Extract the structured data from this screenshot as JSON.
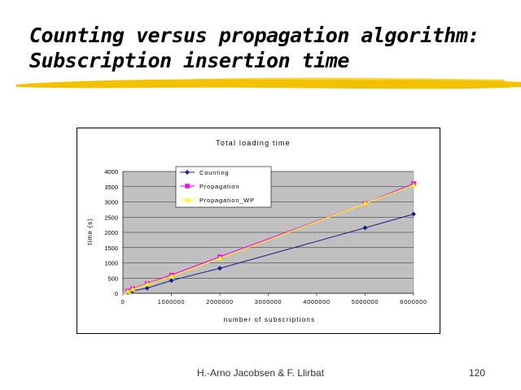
{
  "slide": {
    "title_line1": "Counting versus propagation algorithm:",
    "title_line2": "Subscription insertion time",
    "author": "H.-Arno Jacobsen & F. Llirbat",
    "page_number": "120"
  },
  "colors": {
    "brush": "#f2c200",
    "plot_bg": "#c0c0c0",
    "counting": "#1f1f8c",
    "propagation": "#ff00ff",
    "propagation_wp": "#ffff00"
  },
  "chart_data": {
    "type": "line",
    "title": "Total loading time",
    "xlabel": "number of subscriptions",
    "ylabel": "time (s)",
    "xlim": [
      0,
      6000000
    ],
    "ylim": [
      0,
      4000
    ],
    "x_ticks": [
      0,
      1000000,
      2000000,
      3000000,
      4000000,
      5000000,
      6000000
    ],
    "x_tick_labels": [
      "0",
      "1000000",
      "2000000",
      "3000000",
      "4000000",
      "5000000",
      "6000000"
    ],
    "y_ticks": [
      0,
      500,
      1000,
      1500,
      2000,
      2500,
      3000,
      3500,
      4000
    ],
    "y_tick_labels": [
      "0",
      "500",
      "1000",
      "1500",
      "2000",
      "2500",
      "3000",
      "3500",
      "4000"
    ],
    "grid": true,
    "legend_position": "top-left",
    "series": [
      {
        "name": "Counting",
        "color": "#1f1f8c",
        "marker": "diamond",
        "points": [
          [
            100000,
            30
          ],
          [
            200000,
            80
          ],
          [
            500000,
            170
          ],
          [
            1000000,
            420
          ],
          [
            2000000,
            820
          ],
          [
            5000000,
            2150
          ],
          [
            6000000,
            2600
          ]
        ]
      },
      {
        "name": "Propagation",
        "color": "#ff00ff",
        "marker": "square",
        "points": [
          [
            100000,
            80
          ],
          [
            200000,
            150
          ],
          [
            500000,
            320
          ],
          [
            1000000,
            600
          ],
          [
            2000000,
            1200
          ],
          [
            5000000,
            2950
          ],
          [
            6000000,
            3600
          ]
        ]
      },
      {
        "name": "Propagation_WP",
        "color": "#ffff00",
        "marker": "triangle",
        "points": [
          [
            100000,
            60
          ],
          [
            200000,
            130
          ],
          [
            500000,
            300
          ],
          [
            1000000,
            560
          ],
          [
            2000000,
            1150
          ],
          [
            5000000,
            2950
          ],
          [
            6000000,
            3550
          ]
        ]
      }
    ]
  }
}
